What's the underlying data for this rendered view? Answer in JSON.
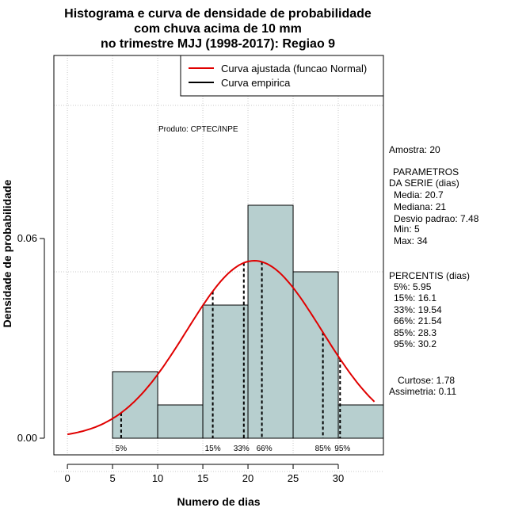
{
  "chart_data": {
    "type": "histogram",
    "title": [
      "Histograma e curva de densidade de probabilidade",
      "com chuva acima de 10 mm",
      "no trimestre MJJ (1998-2017): Regiao 9"
    ],
    "xlabel": "Numero de dias",
    "ylabel": "Densidade de probabilidade",
    "xlim": [
      -1.5,
      35
    ],
    "ylim": [
      -0.005,
      0.115
    ],
    "xticks": [
      "0",
      "5",
      "10",
      "15",
      "20",
      "25",
      "30"
    ],
    "xtick_values": [
      0,
      5,
      10,
      15,
      20,
      25,
      30
    ],
    "yticks": [
      "0.00",
      "0.06"
    ],
    "ytick_values": [
      0.0,
      0.06
    ],
    "grid": true,
    "bins": [
      {
        "x0": 5,
        "x1": 10,
        "density": 0.02
      },
      {
        "x0": 10,
        "x1": 15,
        "density": 0.01
      },
      {
        "x0": 15,
        "x1": 20,
        "density": 0.04
      },
      {
        "x0": 20,
        "x1": 25,
        "density": 0.07
      },
      {
        "x0": 25,
        "x1": 30,
        "density": 0.05
      },
      {
        "x0": 30,
        "x1": 35,
        "density": 0.01
      }
    ],
    "fitted_curve": {
      "name": "Curva ajustada (funcao Normal)",
      "mean": 20.7,
      "sd": 7.48,
      "x_from": 0,
      "x_to": 34,
      "color": "#e00000"
    },
    "empirical_curve": {
      "name": "Curva empirica",
      "color": "#000000"
    },
    "percentile_markers": [
      {
        "label": "5%",
        "value": 5.95
      },
      {
        "label": "15%",
        "value": 16.1
      },
      {
        "label": "33%",
        "value": 19.54
      },
      {
        "label": "66%",
        "value": 21.54
      },
      {
        "label": "85%",
        "value": 28.3
      },
      {
        "label": "95%",
        "value": 30.2
      }
    ],
    "bar_color": "#b7cfcf",
    "legend_position": "top-right",
    "product_note": "Produto: CPTEC/INPE",
    "side_panel": {
      "amostra": "Amostra: 20",
      "parametros_title": [
        "PARAMETROS",
        "DA SERIE (dias)"
      ],
      "parametros": [
        "Media: 20.7",
        "Mediana: 21",
        "Desvio padrao: 7.48",
        "Min: 5",
        "Max: 34"
      ],
      "percentis_title": "PERCENTIS (dias)",
      "percentis": [
        "5%: 5.95",
        "15%: 16.1",
        "33%: 19.54",
        "66%: 21.54",
        "85%: 28.3",
        "95%: 30.2"
      ],
      "curtose": "Curtose: 1.78",
      "assimetria": "Assimetria: 0.11"
    }
  }
}
